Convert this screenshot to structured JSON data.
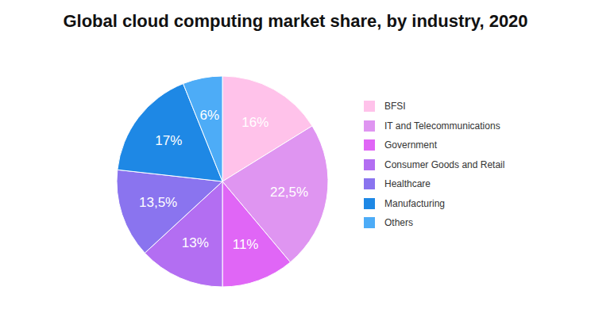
{
  "chart_data": {
    "type": "pie",
    "title": "Global cloud computing market share, by industry, 2020",
    "categories": [
      "BFSI",
      "IT and Telecommunications",
      "Government",
      "Consumer Goods and Retail",
      "Healthcare",
      "Manufacturing",
      "Others"
    ],
    "values": [
      16,
      22.5,
      11,
      13,
      13.5,
      17,
      6
    ],
    "value_labels": [
      "16%",
      "22,5%",
      "11%",
      "13%",
      "13,5%",
      "17%",
      "6%"
    ],
    "colors": [
      "#ffc2ea",
      "#df95f1",
      "#e066f6",
      "#b36ef2",
      "#8a74ef",
      "#1e88e5",
      "#4dacf7"
    ],
    "data_labels": true,
    "legend": "right"
  }
}
